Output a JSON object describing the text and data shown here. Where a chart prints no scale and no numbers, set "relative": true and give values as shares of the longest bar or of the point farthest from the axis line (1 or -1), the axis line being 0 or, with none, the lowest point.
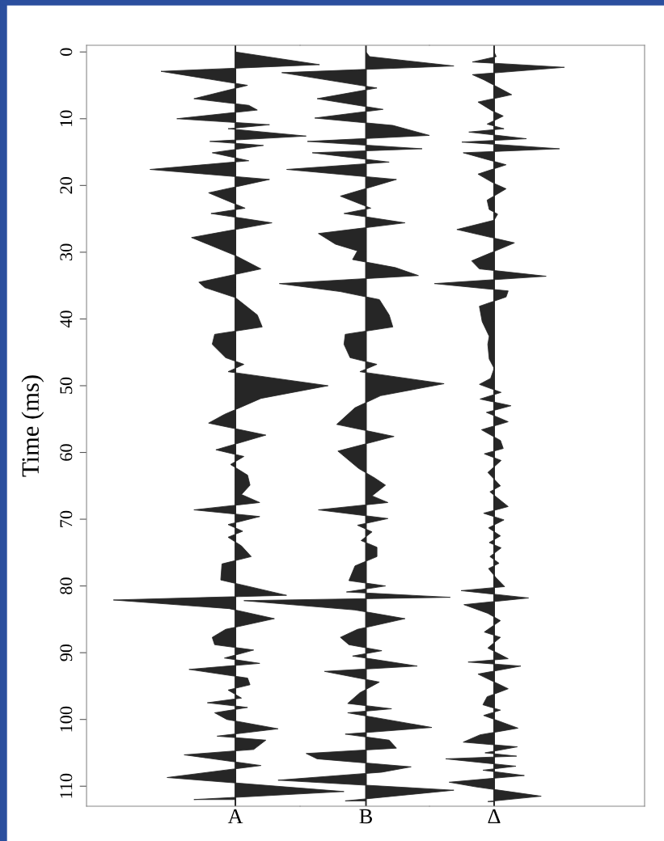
{
  "chart_data": [
    {
      "type": "area",
      "orientation": "horizontal",
      "relative": true,
      "xlabel": "A",
      "ylabel": "Time (ms)",
      "ylim": [
        113,
        -1
      ],
      "yticks": [
        0,
        10,
        20,
        30,
        40,
        50,
        60,
        70,
        80,
        90,
        100,
        110
      ],
      "tick_labels": "y",
      "series": [
        {
          "color": "#262626",
          "x": [
            0,
            1.9,
            2.9,
            5.0,
            7.0,
            8.0,
            8.7,
            10.0,
            10.9,
            11.5,
            12.6,
            13.4,
            14.0,
            15.1,
            16.3,
            17.6,
            19.1,
            21.1,
            23.4,
            24.2,
            25.6,
            27.8,
            30.5,
            32.5,
            34.5,
            35.3,
            36.8,
            39.4,
            41.2,
            42.3,
            43.8,
            45.8,
            46.8,
            47.9,
            50.0,
            51.9,
            54.3,
            55.6,
            57.4,
            59.6,
            60.6,
            61.8,
            63.4,
            64.9,
            66.3,
            67.5,
            68.6,
            69.6,
            70.8,
            71.8,
            72.7,
            74.0,
            75.6,
            76.7,
            79.1,
            81.4,
            82.1,
            83.4,
            84.9,
            86.5,
            87.7,
            88.8,
            89.6,
            90.8,
            91.6,
            92.5,
            93.8,
            94.8,
            95.6,
            96.8,
            97.5,
            98.2,
            99.0,
            100.0,
            101.4,
            102.5,
            103.1,
            104.5,
            105.3,
            106.9,
            108.7,
            110.8,
            112.0
          ],
          "values": [
            0,
            0.69,
            -0.61,
            0.1,
            -0.34,
            0.11,
            0.18,
            -0.48,
            0.28,
            -0.06,
            0.58,
            -0.21,
            0.23,
            -0.19,
            0.11,
            -0.7,
            0.28,
            -0.22,
            0.08,
            -0.2,
            0.3,
            -0.36,
            0,
            0.21,
            -0.3,
            -0.25,
            0,
            0.18,
            0.22,
            -0.17,
            -0.19,
            -0.08,
            0.07,
            -0.06,
            0.76,
            0.21,
            -0.09,
            -0.22,
            0.25,
            -0.16,
            0.07,
            -0.04,
            0.1,
            0.12,
            0.05,
            0.2,
            -0.34,
            0.2,
            -0.06,
            0.06,
            -0.06,
            0.05,
            0.13,
            -0.11,
            -0.12,
            0.42,
            -1,
            -0.05,
            0.32,
            -0.08,
            -0.19,
            -0.17,
            0.15,
            -0.09,
            0.2,
            -0.38,
            0.1,
            0.12,
            -0.06,
            0.05,
            -0.23,
            0.1,
            -0.17,
            -0.07,
            0.35,
            -0.15,
            0.25,
            0.15,
            -0.42,
            0.21,
            -0.56,
            0.89,
            -0.34
          ]
        }
      ]
    },
    {
      "type": "area",
      "orientation": "horizontal",
      "relative": true,
      "xlabel": "B",
      "ylim": [
        113,
        -1
      ],
      "yticks": [
        0,
        10,
        20,
        30,
        40,
        50,
        60,
        70,
        80,
        90,
        100,
        110
      ],
      "tick_labels": false,
      "series": [
        {
          "color": "#262626",
          "x": [
            0,
            0.7,
            2.1,
            3.1,
            5.4,
            7.0,
            8.6,
            9.9,
            11.0,
            12.5,
            13.4,
            14.5,
            15.1,
            16.5,
            17.6,
            19.1,
            21.6,
            23.4,
            24.2,
            25.6,
            27.2,
            28.8,
            29.8,
            31.1,
            32.3,
            33.5,
            34.7,
            35.9,
            37.1,
            39.4,
            41.2,
            42.3,
            43.8,
            45.8,
            46.8,
            47.9,
            49.7,
            51.5,
            53.3,
            55.8,
            57.6,
            59.8,
            62.4,
            63.8,
            64.9,
            66.5,
            67.5,
            68.6,
            69.9,
            70.9,
            71.9,
            73.2,
            74.2,
            75.6,
            77.0,
            79.2,
            80.0,
            80.9,
            81.7,
            82.2,
            83.6,
            84.9,
            86.5,
            87.7,
            88.8,
            89.7,
            90.5,
            92.0,
            92.8,
            94.4,
            96.0,
            97.6,
            98.4,
            99.0,
            101.2,
            102.2,
            103.1,
            104.3,
            105.1,
            105.9,
            107.1,
            107.9,
            109.1,
            110.6,
            112.2
          ],
          "values": [
            0,
            0.03,
            0.72,
            -0.69,
            0.09,
            -0.4,
            0.14,
            -0.42,
            0.22,
            0.52,
            -0.48,
            0.46,
            -0.44,
            0.19,
            -0.65,
            0.25,
            -0.21,
            0.04,
            -0.18,
            0.32,
            -0.39,
            -0.25,
            -0.07,
            -0.11,
            0.24,
            0.43,
            -0.71,
            -0.21,
            0.11,
            0.19,
            0.22,
            -0.17,
            -0.18,
            -0.13,
            0.09,
            -0.05,
            0.64,
            0.12,
            -0.09,
            -0.24,
            0.23,
            -0.23,
            -0.06,
            0.07,
            0.16,
            0.05,
            0.18,
            -0.39,
            0.18,
            -0.07,
            0.05,
            -0.04,
            0.09,
            0.09,
            -0.09,
            -0.14,
            0.16,
            -0.16,
            0.69,
            -1,
            -0.09,
            0.32,
            -0.07,
            -0.21,
            -0.14,
            0.13,
            -0.11,
            0.42,
            -0.34,
            0.11,
            -0.05,
            -0.15,
            0.21,
            -0.15,
            0.54,
            -0.17,
            0.19,
            0.25,
            -0.49,
            -0.4,
            0.37,
            0.13,
            -0.72,
            0.72,
            -0.17
          ]
        }
      ]
    },
    {
      "type": "area",
      "orientation": "horizontal",
      "relative": true,
      "xlabel": "Δ",
      "ylim": [
        113,
        -1
      ],
      "yticks": [
        0,
        10,
        20,
        30,
        40,
        50,
        60,
        70,
        80,
        90,
        100,
        110
      ],
      "tick_labels": false,
      "series": [
        {
          "color": "#262626",
          "x": [
            0,
            0.7,
            1.5,
            2.3,
            3.4,
            4.2,
            6.4,
            7.5,
            8.8,
            9.6,
            10.8,
            11.5,
            12.0,
            13.0,
            13.5,
            14.5,
            15.1,
            15.9,
            16.9,
            18.3,
            19.7,
            20.5,
            22.2,
            23.6,
            24.3,
            25.2,
            26.6,
            28.6,
            31.3,
            32.5,
            33.6,
            34.7,
            35.8,
            36.7,
            38.1,
            40.4,
            42.6,
            43.8,
            46.0,
            47.4,
            48.9,
            49.8,
            51.0,
            52.0,
            53.0,
            54.0,
            55.4,
            56.6,
            58.2,
            59.4,
            60.2,
            61.2,
            63.0,
            65.0,
            65.9,
            68.1,
            69.1,
            70.1,
            71.3,
            72.5,
            73.5,
            74.3,
            75.6,
            76.6,
            77.4,
            78.8,
            80.1,
            80.7,
            81.8,
            82.8,
            84.1,
            85.2,
            86.9,
            87.7,
            89.3,
            90.9,
            91.4,
            92.0,
            93.2,
            95.4,
            96.6,
            97.8,
            98.6,
            99.4,
            101.3,
            102.3,
            103.4,
            104.1,
            105.0,
            105.5,
            105.9,
            107.0,
            107.6,
            108.4,
            109.4,
            110.1,
            111.5,
            112.3
          ],
          "values": [
            0,
            0.03,
            -0.31,
            1,
            -0.31,
            -0.14,
            0.25,
            -0.23,
            -0.03,
            0.13,
            -0.1,
            0.14,
            -0.36,
            0.46,
            -0.46,
            0.93,
            -0.44,
            -0.17,
            0.17,
            -0.23,
            0,
            0.17,
            -0.1,
            -0.07,
            0.05,
            0,
            -0.53,
            0.29,
            -0.32,
            -0.21,
            0.74,
            -0.85,
            0.2,
            0.17,
            -0.21,
            -0.17,
            -0.07,
            -0.09,
            -0.07,
            0,
            -0.05,
            -0.21,
            0.1,
            -0.2,
            0.24,
            -0.11,
            0.2,
            -0.18,
            0.09,
            0.13,
            -0.14,
            0.1,
            -0.09,
            0.09,
            -0.06,
            0.2,
            -0.15,
            0.14,
            -0.08,
            0.09,
            -0.07,
            0.1,
            -0.06,
            0.07,
            -0.08,
            0.03,
            0.15,
            -0.47,
            0.49,
            -0.43,
            -0.09,
            0.09,
            -0.14,
            0.09,
            -0.09,
            0.2,
            -0.37,
            0.38,
            -0.23,
            0.2,
            -0.1,
            -0.16,
            0.09,
            -0.15,
            0.34,
            -0.2,
            -0.44,
            0.33,
            -0.13,
            0.32,
            -0.69,
            0.31,
            -0.16,
            0.43,
            -0.64,
            -0.26,
            0.67,
            -0.09
          ]
        }
      ]
    }
  ]
}
